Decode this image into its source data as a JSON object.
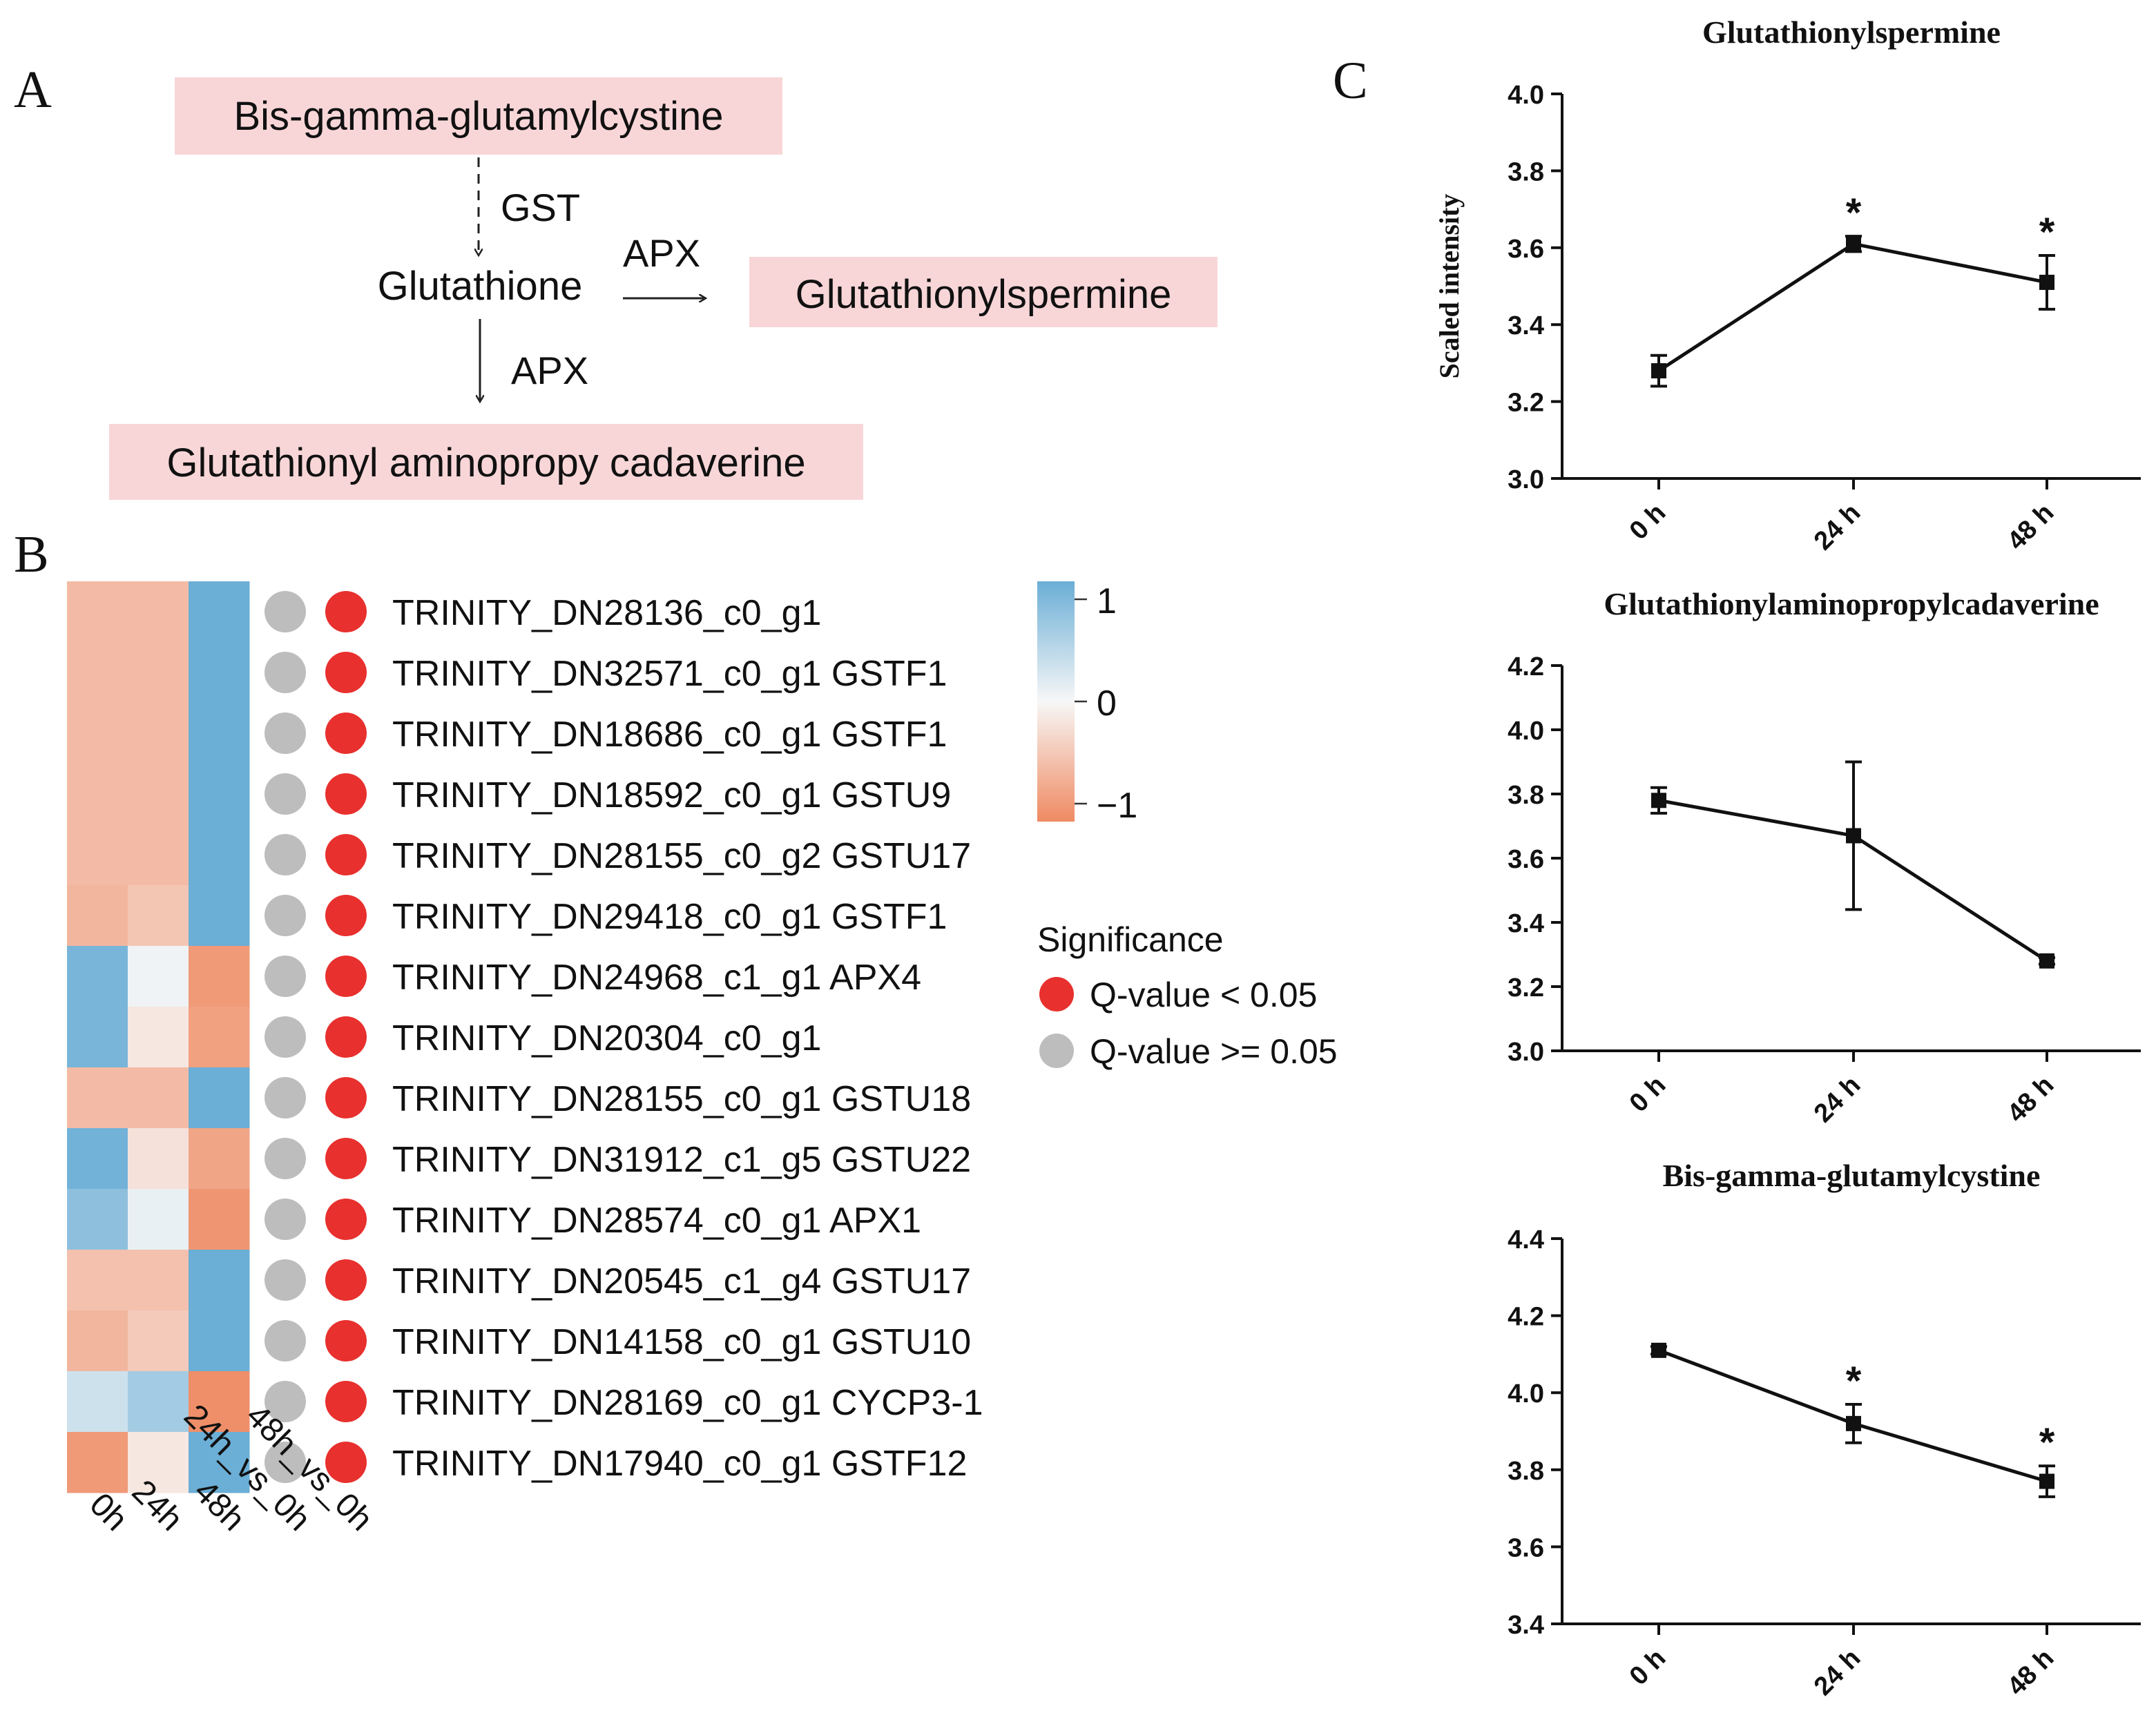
{
  "panel_labels": {
    "a": "A",
    "b": "B",
    "c": "C"
  },
  "colors": {
    "pink_box": "#f8d6d8",
    "heat_high": "#6baed6",
    "heat_mid": "#f7f7f7",
    "heat_low": "#ef8a62",
    "sig_red": "#e8302e",
    "nonsig_grey": "#bdbdbd"
  },
  "pathway": {
    "top": "Bis-gamma-glutamylcystine",
    "enzyme_gst": "GST",
    "middle": "Glutathione",
    "enzyme_right": "APX",
    "right": "Glutathionylspermine",
    "enzyme_down": "APX",
    "bottom": "Glutathionyl aminopropy cadaverine"
  },
  "heatmap": {
    "columns": [
      "0h",
      "24h",
      "48h"
    ],
    "sig_columns": [
      "24h_vs_0h",
      "48h_vs_0h"
    ],
    "rows": [
      {
        "label": "TRINITY_DN28136_c0_g1",
        "values": [
          -0.55,
          -0.55,
          1.0
        ],
        "sig": [
          false,
          true
        ]
      },
      {
        "label": "TRINITY_DN32571_c0_g1 GSTF1",
        "values": [
          -0.55,
          -0.55,
          1.0
        ],
        "sig": [
          false,
          true
        ]
      },
      {
        "label": "TRINITY_DN18686_c0_g1 GSTF1",
        "values": [
          -0.55,
          -0.55,
          1.0
        ],
        "sig": [
          false,
          true
        ]
      },
      {
        "label": "TRINITY_DN18592_c0_g1 GSTU9",
        "values": [
          -0.55,
          -0.55,
          1.0
        ],
        "sig": [
          false,
          true
        ]
      },
      {
        "label": "TRINITY_DN28155_c0_g2 GSTU17",
        "values": [
          -0.55,
          -0.55,
          1.0
        ],
        "sig": [
          false,
          true
        ]
      },
      {
        "label": "TRINITY_DN29418_c0_g1 GSTF1",
        "values": [
          -0.6,
          -0.45,
          1.0
        ],
        "sig": [
          false,
          true
        ]
      },
      {
        "label": "TRINITY_DN24968_c1_g1 APX4",
        "values": [
          0.9,
          0.05,
          -0.85
        ],
        "sig": [
          false,
          true
        ]
      },
      {
        "label": "TRINITY_DN20304_c0_g1",
        "values": [
          0.9,
          -0.15,
          -0.8
        ],
        "sig": [
          false,
          true
        ]
      },
      {
        "label": "TRINITY_DN28155_c0_g1 GSTU18",
        "values": [
          -0.55,
          -0.55,
          1.0
        ],
        "sig": [
          false,
          true
        ]
      },
      {
        "label": "TRINITY_DN31912_c1_g5 GSTU22",
        "values": [
          0.95,
          -0.2,
          -0.75
        ],
        "sig": [
          false,
          true
        ]
      },
      {
        "label": "TRINITY_DN28574_c0_g1 APX1",
        "values": [
          0.75,
          0.1,
          -0.9
        ],
        "sig": [
          false,
          true
        ]
      },
      {
        "label": "TRINITY_DN20545_c1_g4 GSTU17",
        "values": [
          -0.5,
          -0.5,
          1.0
        ],
        "sig": [
          false,
          true
        ]
      },
      {
        "label": "TRINITY_DN14158_c0_g1 GSTU10",
        "values": [
          -0.6,
          -0.4,
          1.0
        ],
        "sig": [
          false,
          true
        ]
      },
      {
        "label": "TRINITY_DN28169_c0_g1 CYCP3-1",
        "values": [
          0.3,
          0.6,
          -0.95
        ],
        "sig": [
          false,
          true
        ]
      },
      {
        "label": "TRINITY_DN17940_c0_g1 GSTF12",
        "values": [
          -0.85,
          -0.15,
          1.0
        ],
        "sig": [
          false,
          true
        ]
      }
    ],
    "colorbar": {
      "ticks": [
        "1",
        "0",
        "−1"
      ]
    },
    "legend": {
      "title": "Significance",
      "items": [
        {
          "label": "Q-value < 0.05",
          "color": "#e8302e"
        },
        {
          "label": "Q-value >= 0.05",
          "color": "#bdbdbd"
        }
      ]
    }
  },
  "chart_data": [
    {
      "type": "line",
      "title": "Glutathionylspermine",
      "ylabel": "Scaled intensity",
      "xlabel": "",
      "categories": [
        "0 h",
        "24 h",
        "48 h"
      ],
      "values": [
        3.28,
        3.61,
        3.51
      ],
      "errors": [
        0.04,
        0.02,
        0.07
      ],
      "significance": [
        "",
        "*",
        "*"
      ],
      "ylim": [
        3.0,
        4.0
      ],
      "yticks": [
        "3.0",
        "3.2",
        "3.4",
        "3.6",
        "3.8",
        "4.0"
      ]
    },
    {
      "type": "line",
      "title": "Glutathionylaminopropylcadaverine",
      "ylabel": "",
      "xlabel": "",
      "categories": [
        "0 h",
        "24 h",
        "48 h"
      ],
      "values": [
        3.78,
        3.67,
        3.28
      ],
      "errors": [
        0.04,
        0.23,
        0.01
      ],
      "significance": [
        "",
        "",
        ""
      ],
      "ylim": [
        3.0,
        4.2
      ],
      "yticks": [
        "3.0",
        "3.2",
        "3.4",
        "3.6",
        "3.8",
        "4.0",
        "4.2"
      ]
    },
    {
      "type": "line",
      "title": "Bis-gamma-glutamylcystine",
      "ylabel": "",
      "xlabel": "",
      "categories": [
        "0 h",
        "24 h",
        "48 h"
      ],
      "values": [
        4.11,
        3.92,
        3.77
      ],
      "errors": [
        0.01,
        0.05,
        0.04
      ],
      "significance": [
        "",
        "*",
        "*"
      ],
      "ylim": [
        3.4,
        4.4
      ],
      "yticks": [
        "3.4",
        "3.6",
        "3.8",
        "4.0",
        "4.2",
        "4.4"
      ]
    }
  ]
}
